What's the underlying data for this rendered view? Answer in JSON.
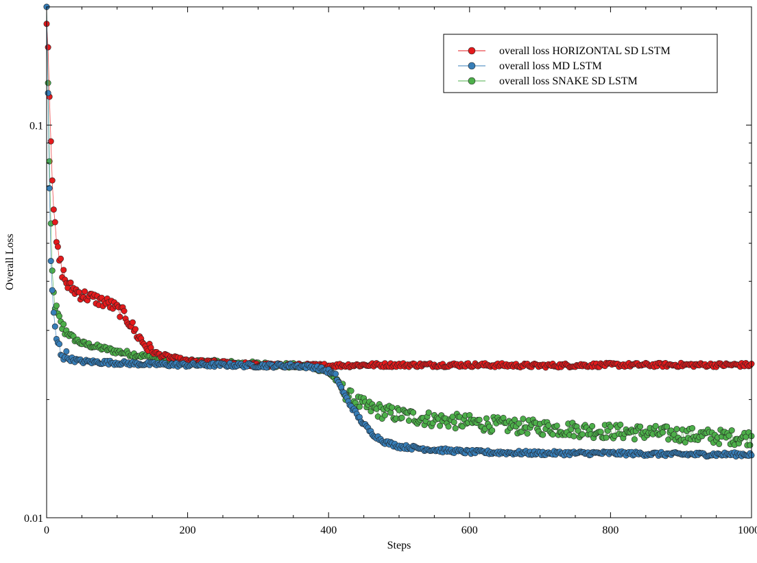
{
  "chart_data": {
    "type": "scatter",
    "xlabel": "Steps",
    "ylabel": "Overall Loss",
    "xlim": [
      0,
      1000
    ],
    "ylim": [
      0.01,
      0.2
    ],
    "yscale": "log",
    "xticks": [
      0,
      200,
      400,
      600,
      800,
      1000
    ],
    "xtick_labels": [
      "0",
      "200",
      "400",
      "600",
      "800",
      "1000"
    ],
    "yticks": [
      0.01,
      0.1
    ],
    "ytick_labels": [
      "0.01",
      "0.1"
    ],
    "grid": false,
    "legend_position": "top-right",
    "series": [
      {
        "name": "overall loss HORIZONTAL SD LSTM",
        "color": "#e41a1c",
        "x": [
          0,
          2,
          4,
          6,
          8,
          10,
          12,
          15,
          20,
          25,
          30,
          40,
          50,
          60,
          70,
          80,
          90,
          100,
          110,
          120,
          130,
          140,
          150,
          160,
          180,
          200,
          250,
          300,
          350,
          400,
          450,
          500,
          600,
          700,
          800,
          900,
          1000
        ],
        "y": [
          0.19,
          0.16,
          0.12,
          0.095,
          0.075,
          0.062,
          0.054,
          0.048,
          0.044,
          0.041,
          0.039,
          0.038,
          0.037,
          0.0365,
          0.036,
          0.0355,
          0.035,
          0.034,
          0.033,
          0.031,
          0.029,
          0.0275,
          0.0265,
          0.026,
          0.0255,
          0.025,
          0.0248,
          0.0245,
          0.0244,
          0.0244,
          0.0245,
          0.0245,
          0.0245,
          0.0244,
          0.0245,
          0.0245,
          0.0245
        ]
      },
      {
        "name": "overall loss MD LSTM",
        "color": "#377eb8",
        "x": [
          0,
          1,
          2,
          3,
          4,
          5,
          6,
          8,
          10,
          12,
          15,
          20,
          25,
          30,
          40,
          50,
          100,
          150,
          200,
          250,
          300,
          350,
          380,
          400,
          410,
          420,
          430,
          440,
          450,
          460,
          470,
          480,
          500,
          550,
          600,
          700,
          800,
          900,
          1000
        ],
        "y": [
          0.2,
          0.16,
          0.12,
          0.09,
          0.07,
          0.055,
          0.045,
          0.037,
          0.033,
          0.03,
          0.028,
          0.0265,
          0.026,
          0.0255,
          0.0252,
          0.025,
          0.0248,
          0.0246,
          0.0245,
          0.0245,
          0.0244,
          0.0244,
          0.0242,
          0.0236,
          0.023,
          0.021,
          0.0195,
          0.0183,
          0.0173,
          0.0165,
          0.016,
          0.0156,
          0.0152,
          0.0149,
          0.0147,
          0.0146,
          0.0146,
          0.0145,
          0.0145
        ]
      },
      {
        "name": "overall loss SNAKE SD LSTM",
        "color": "#4daf4a",
        "x": [
          0,
          1,
          2,
          3,
          4,
          5,
          6,
          8,
          10,
          12,
          15,
          20,
          30,
          40,
          50,
          80,
          100,
          150,
          200,
          250,
          300,
          350,
          380,
          400,
          410,
          420,
          430,
          440,
          450,
          460,
          480,
          500,
          550,
          600,
          650,
          700,
          750,
          800,
          850,
          900,
          950,
          1000
        ],
        "y": [
          0.2,
          0.17,
          0.13,
          0.1,
          0.08,
          0.065,
          0.054,
          0.042,
          0.037,
          0.035,
          0.033,
          0.031,
          0.0295,
          0.0285,
          0.0278,
          0.027,
          0.0265,
          0.0256,
          0.025,
          0.0248,
          0.0246,
          0.0244,
          0.0242,
          0.0235,
          0.0225,
          0.0212,
          0.0203,
          0.0197,
          0.0193,
          0.019,
          0.0186,
          0.0183,
          0.0178,
          0.0175,
          0.0172,
          0.017,
          0.0168,
          0.0166,
          0.0165,
          0.0163,
          0.0161,
          0.016
        ]
      }
    ]
  }
}
